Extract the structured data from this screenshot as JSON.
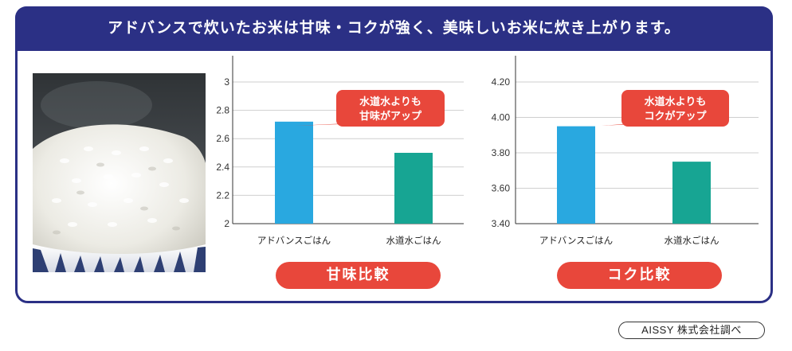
{
  "header": {
    "title": "アドバンスで炊いたお米は甘味・コクが強く、美味しいお米に炊き上がります。"
  },
  "image": {
    "alt": "炊きたてのご飯"
  },
  "chart_data": [
    {
      "type": "bar",
      "title": "甘味比較",
      "categories": [
        "アドバンスごはん",
        "水道水ごはん"
      ],
      "values": [
        2.72,
        2.5
      ],
      "ylim": [
        2,
        3
      ],
      "yticks": [
        2,
        2.2,
        2.4,
        2.6,
        2.8,
        3
      ],
      "ytick_labels": [
        "2",
        "2.2",
        "2.4",
        "2.6",
        "2.8",
        "3"
      ],
      "colors": [
        "#29a8e0",
        "#17a593"
      ],
      "grid": true,
      "annotation": {
        "lines": [
          "水道水よりも",
          "甘味がアップ"
        ],
        "points_to": "アドバンスごはん"
      }
    },
    {
      "type": "bar",
      "title": "コク比較",
      "categories": [
        "アドバンスごはん",
        "水道水ごはん"
      ],
      "values": [
        3.95,
        3.75
      ],
      "ylim": [
        3.4,
        4.3
      ],
      "yticks": [
        3.4,
        3.6,
        3.8,
        4.0,
        4.2
      ],
      "ytick_labels": [
        "3.40",
        "3.60",
        "3.80",
        "4.00",
        "4.20"
      ],
      "colors": [
        "#29a8e0",
        "#17a593"
      ],
      "grid": true,
      "annotation": {
        "lines": [
          "水道水よりも",
          "コクがアップ"
        ],
        "points_to": "アドバンスごはん"
      }
    }
  ],
  "source": {
    "label": "AISSY 株式会社調べ"
  },
  "colors": {
    "navy": "#2b3085",
    "accent": "#e8473b",
    "blue_bar": "#29a8e0",
    "teal_bar": "#17a593"
  }
}
